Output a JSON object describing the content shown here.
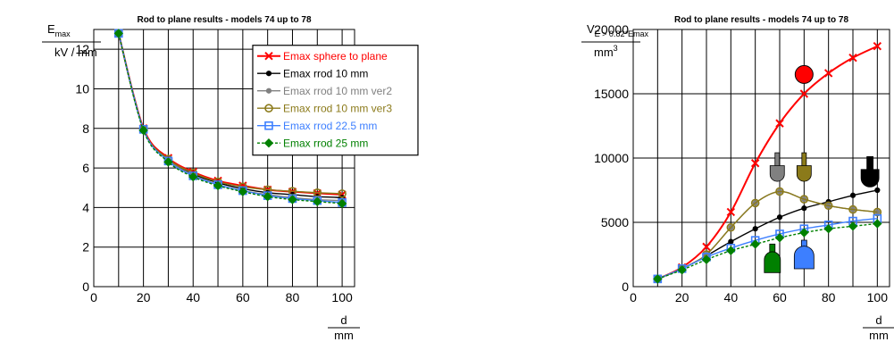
{
  "chart_data": [
    {
      "type": "line",
      "title": "Rod to plane results - models 74 up to 78",
      "ylabel": {
        "main": "E",
        "sub": "max",
        "den": "kV / mm"
      },
      "xlabel": {
        "num": "d",
        "den": "mm"
      },
      "xlim": [
        0,
        105
      ],
      "ylim": [
        0,
        13
      ],
      "xticks": [
        0,
        20,
        40,
        60,
        80,
        100
      ],
      "yticks": [
        0,
        2,
        4,
        6,
        8,
        10,
        12
      ],
      "grid": true,
      "legend_position": "top-right",
      "x": [
        10,
        20,
        30,
        40,
        50,
        60,
        70,
        80,
        90,
        100
      ],
      "series": [
        {
          "name": "Emax sphere to plane",
          "color": "#ff0000",
          "marker": "x",
          "values": [
            12.8,
            8.0,
            6.5,
            5.8,
            5.35,
            5.1,
            4.9,
            4.8,
            4.72,
            4.65
          ]
        },
        {
          "name": "Emax rrod 10 mm",
          "color": "#000000",
          "marker": "dot",
          "values": [
            12.8,
            7.95,
            6.4,
            5.7,
            5.25,
            4.95,
            4.75,
            4.65,
            4.55,
            4.5
          ]
        },
        {
          "name": "Emax rrod 10 mm ver2",
          "color": "#808080",
          "marker": "dot",
          "values": [
            12.8,
            7.95,
            6.4,
            5.65,
            5.15,
            4.85,
            4.65,
            4.5,
            4.4,
            4.35
          ]
        },
        {
          "name": "Emax rrod 10 mm ver3",
          "color": "#8b7a1a",
          "marker": "circle",
          "values": [
            12.8,
            7.95,
            6.45,
            5.75,
            5.3,
            5.05,
            4.9,
            4.82,
            4.75,
            4.7
          ]
        },
        {
          "name": "Emax rrod 22.5 mm",
          "color": "#3d7fff",
          "marker": "square",
          "values": [
            12.8,
            7.95,
            6.35,
            5.6,
            5.15,
            4.85,
            4.6,
            4.45,
            4.35,
            4.25
          ]
        },
        {
          "name": "Emax rrod 25 mm",
          "color": "#008000",
          "marker": "diamond",
          "values": [
            12.8,
            7.9,
            6.3,
            5.55,
            5.1,
            4.8,
            4.55,
            4.4,
            4.3,
            4.2
          ]
        }
      ]
    },
    {
      "type": "line",
      "title": "Rod to plane results - models 74 up to 78",
      "ylabel": {
        "main": "V",
        "sub": "E > 0.82*Emax",
        "den": "mm",
        "den_sup": "3"
      },
      "xlabel": {
        "num": "d",
        "den": "mm"
      },
      "xlim": [
        0,
        105
      ],
      "ylim": [
        0,
        20000
      ],
      "xticks": [
        0,
        20,
        40,
        60,
        80,
        100
      ],
      "yticks": [
        0,
        5000,
        10000,
        15000,
        20000
      ],
      "grid": true,
      "x": [
        10,
        20,
        30,
        40,
        50,
        60,
        70,
        80,
        90,
        100
      ],
      "series": [
        {
          "color": "#ff0000",
          "marker": "x",
          "values": [
            600,
            1500,
            3100,
            5800,
            9600,
            12700,
            15000,
            16600,
            17800,
            18700
          ]
        },
        {
          "color": "#000000",
          "marker": "dot",
          "values": [
            600,
            1400,
            2400,
            3500,
            4500,
            5400,
            6100,
            6600,
            7100,
            7500
          ]
        },
        {
          "color": "#808080",
          "marker": "dot",
          "values": [
            600,
            1400,
            2500,
            4600,
            6500,
            7400,
            6800,
            6300,
            6000,
            5800
          ]
        },
        {
          "color": "#8b7a1a",
          "marker": "circle",
          "values": [
            600,
            1400,
            2500,
            4600,
            6500,
            7400,
            6800,
            6300,
            6000,
            5800
          ]
        },
        {
          "color": "#3d7fff",
          "marker": "square",
          "values": [
            600,
            1400,
            2300,
            3000,
            3600,
            4100,
            4500,
            4800,
            5100,
            5300
          ]
        },
        {
          "color": "#008000",
          "marker": "diamond",
          "values": [
            600,
            1300,
            2100,
            2800,
            3300,
            3800,
            4200,
            4500,
            4700,
            4900
          ]
        }
      ],
      "glyphs": [
        {
          "icon": "sphere-icon",
          "color": "#ff0000",
          "x": 70,
          "y": 16500
        },
        {
          "icon": "rod-10mm-icon",
          "color": "#000000",
          "x": 97,
          "y": 9000
        },
        {
          "icon": "rod-10mm-ver2-icon",
          "color": "#808080",
          "x": 59,
          "y": 9300
        },
        {
          "icon": "rod-10mm-ver3-icon",
          "color": "#8b7a1a",
          "x": 70,
          "y": 9300
        },
        {
          "icon": "rod-22-5mm-icon",
          "color": "#3d7fff",
          "x": 70,
          "y": 2500
        },
        {
          "icon": "rod-25mm-icon",
          "color": "#008000",
          "x": 57,
          "y": 2200
        }
      ]
    }
  ]
}
